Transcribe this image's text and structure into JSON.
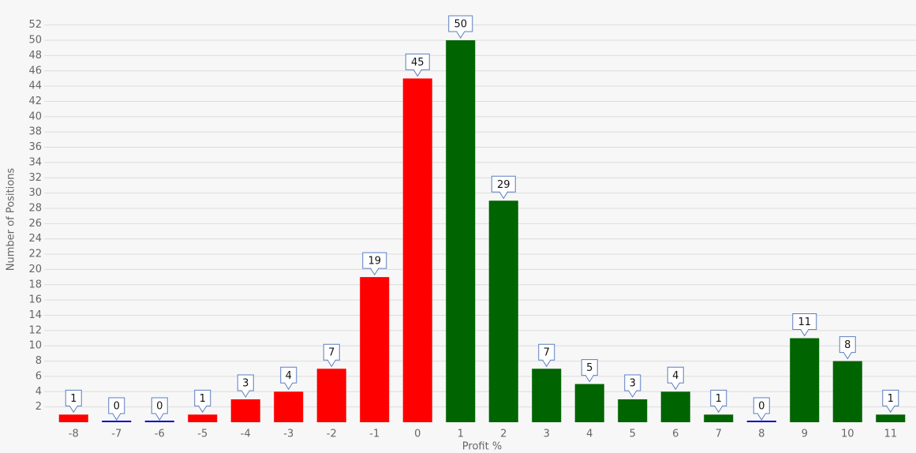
{
  "chart_data": {
    "type": "bar",
    "x_label": "Profit %",
    "y_label": "Number of Positions",
    "categories": [
      "-8",
      "-7",
      "-6",
      "-5",
      "-4",
      "-3",
      "-2",
      "-1",
      "0",
      "1",
      "2",
      "3",
      "4",
      "5",
      "6",
      "7",
      "8",
      "9",
      "10",
      "11"
    ],
    "values": [
      1,
      0,
      0,
      1,
      3,
      4,
      7,
      19,
      45,
      50,
      29,
      7,
      5,
      3,
      4,
      1,
      0,
      11,
      8,
      1
    ],
    "colors": [
      "#ff0000",
      "#0000cd",
      "#0000cd",
      "#ff0000",
      "#ff0000",
      "#ff0000",
      "#ff0000",
      "#ff0000",
      "#ff0000",
      "#006400",
      "#006400",
      "#006400",
      "#006400",
      "#006400",
      "#006400",
      "#006400",
      "#0000cd",
      "#006400",
      "#006400",
      "#006400"
    ],
    "ylim": [
      0,
      53
    ],
    "yticks": [
      2,
      4,
      6,
      8,
      10,
      12,
      14,
      16,
      18,
      20,
      22,
      24,
      26,
      28,
      30,
      32,
      34,
      36,
      38,
      40,
      42,
      44,
      46,
      48,
      50,
      52
    ],
    "grid": true
  }
}
